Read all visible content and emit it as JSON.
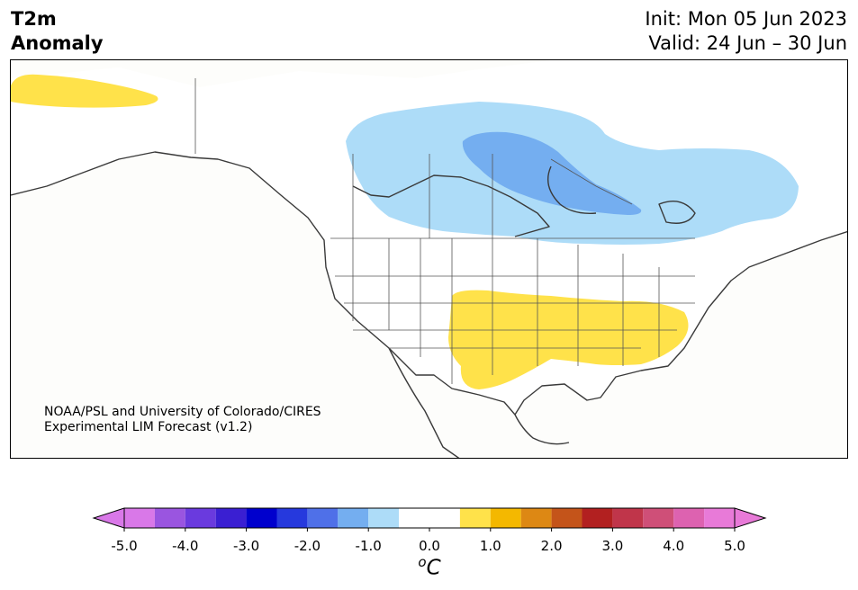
{
  "title": {
    "variable": "T2m",
    "field": "Anomaly",
    "init": "Init: Mon 05 Jun 2023",
    "valid": "Valid: 24 Jun – 30 Jun"
  },
  "credit": {
    "line1": "NOAA/PSL and University of Colorado/CIRES",
    "line2": "Experimental LIM Forecast (v1.2)"
  },
  "colorbar": {
    "unit_superscript": "o",
    "unit_base": "C",
    "tick_labels": [
      "-5.0",
      "-4.0",
      "-3.0",
      "-2.0",
      "-1.0",
      "0.0",
      "1.0",
      "2.0",
      "3.0",
      "4.0",
      "5.0"
    ],
    "levels": [
      -5.0,
      -4.5,
      -4.0,
      -3.5,
      -3.0,
      -2.5,
      -2.0,
      -1.5,
      -1.0,
      -0.5,
      0.5,
      1.0,
      1.5,
      2.0,
      2.5,
      3.0,
      3.5,
      4.0,
      4.5,
      5.0
    ],
    "colors": [
      "#d978e8",
      "#9a55e0",
      "#6a3ade",
      "#3a1fd2",
      "#0000cd",
      "#2639dd",
      "#4f70e8",
      "#74aef0",
      "#addcf8",
      "#ffffff",
      "#ffe24a",
      "#f4b800",
      "#dd8814",
      "#c4541a",
      "#b22020",
      "#c0354a",
      "#cf4f78",
      "#dd62b0",
      "#e87ad8"
    ],
    "extend_low_color": "#d978e8",
    "extend_high_color": "#e87ad8"
  },
  "map": {
    "region": "North America",
    "anomaly_colors": {
      "warm_1": "#ffe24a",
      "cool_1": "#addcf8",
      "cool_2": "#74aef0"
    },
    "coast_color": "#3a3a3a",
    "border_color": "#555555"
  }
}
